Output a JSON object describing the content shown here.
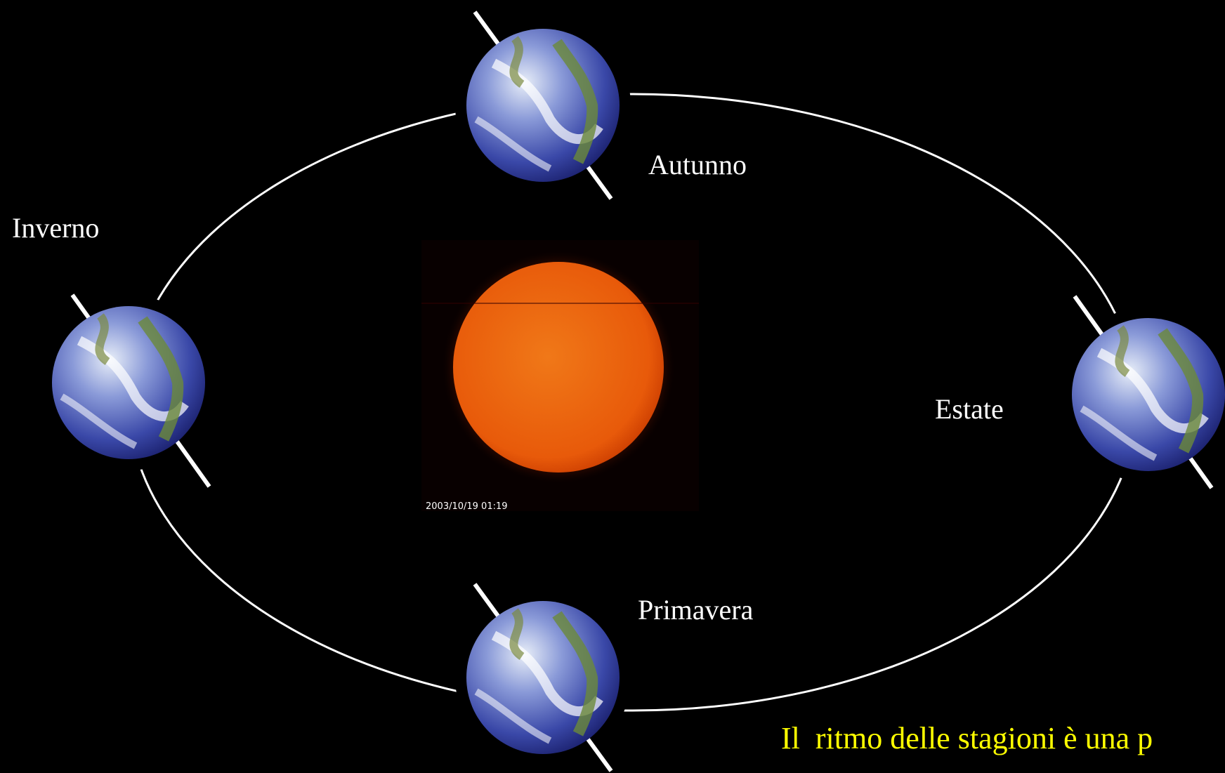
{
  "labels": {
    "autunno": "Autunno",
    "inverno": "Inverno",
    "estate": "Estate",
    "primavera": "Primavera"
  },
  "sun_image": {
    "timestamp": "2003/10/19 01:19"
  },
  "caption": "Il  ritmo delle stagioni è una p"
}
